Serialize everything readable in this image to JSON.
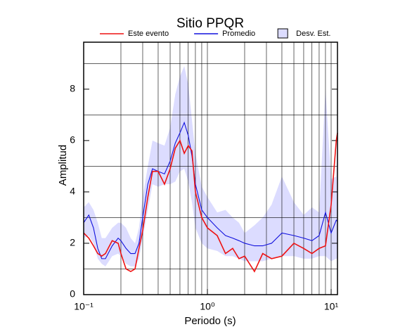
{
  "chart_data": {
    "type": "line",
    "title": "Sitio PPQR",
    "xlabel": "Periodo (s)",
    "ylabel": "Amplitud",
    "x_log": true,
    "xlim": [
      0.1,
      11.25
    ],
    "ylim": [
      0,
      9.83
    ],
    "xticks": [
      {
        "value": 0.1,
        "label": "10⁻¹"
      },
      {
        "value": 1,
        "label": "10⁰"
      },
      {
        "value": 10,
        "label": "10¹"
      }
    ],
    "xminor": [
      0.2,
      0.3,
      0.4,
      0.5,
      0.6,
      0.7,
      0.8,
      0.9,
      2,
      3,
      4,
      5,
      6,
      7,
      8,
      9
    ],
    "yticks": [
      0,
      2,
      4,
      6,
      8
    ],
    "yminor": [
      1,
      3,
      5,
      7,
      9
    ],
    "grid": true,
    "x": [
      0.1,
      0.11,
      0.12,
      0.13,
      0.14,
      0.15,
      0.17,
      0.19,
      0.2,
      0.22,
      0.24,
      0.26,
      0.28,
      0.3,
      0.33,
      0.36,
      0.4,
      0.45,
      0.5,
      0.55,
      0.6,
      0.65,
      0.7,
      0.75,
      0.8,
      0.9,
      1.0,
      1.2,
      1.4,
      1.6,
      1.8,
      2.0,
      2.4,
      2.8,
      3.3,
      4,
      5,
      6,
      7,
      8,
      9,
      10,
      11,
      11.25
    ],
    "band": {
      "name": "Desv. Est.",
      "color": "#dcdcff",
      "lower": [
        2.2,
        2.3,
        2.0,
        1.4,
        1.2,
        1.1,
        1.5,
        1.6,
        1.5,
        1.2,
        1.1,
        1.1,
        1.4,
        2.2,
        3.3,
        4.3,
        4.2,
        4.3,
        4.3,
        4.4,
        4.8,
        4.9,
        4.4,
        3.6,
        2.6,
        2.0,
        1.8,
        1.7,
        1.5,
        1.5,
        1.4,
        1.3,
        1.3,
        1.3,
        1.4,
        1.5,
        1.5,
        1.4,
        1.4,
        1.5,
        1.5,
        1.3,
        1.4,
        1.4
      ],
      "upper": [
        3.4,
        3.6,
        3.3,
        2.8,
        2.2,
        2.2,
        2.6,
        2.8,
        2.8,
        2.6,
        2.2,
        2.0,
        2.6,
        3.8,
        5.0,
        6.0,
        5.9,
        5.8,
        6.5,
        7.8,
        8.5,
        8.9,
        8.2,
        6.8,
        5.5,
        4.2,
        3.8,
        3.2,
        3.3,
        3.0,
        2.8,
        2.4,
        2.7,
        3.0,
        3.5,
        4.6,
        3.6,
        3.1,
        3.4,
        3.2,
        8.0,
        4.5,
        4.6,
        6.6
      ]
    },
    "series": [
      {
        "name": "Este evento",
        "color": "#ee1111",
        "values": [
          2.4,
          2.2,
          1.9,
          1.6,
          1.5,
          1.6,
          2.1,
          2.0,
          1.6,
          1.0,
          0.9,
          1.0,
          1.8,
          2.5,
          3.8,
          4.8,
          4.8,
          4.3,
          4.9,
          5.7,
          6.0,
          5.5,
          5.8,
          5.6,
          4.0,
          3.0,
          2.6,
          2.3,
          1.6,
          1.8,
          1.4,
          1.5,
          0.9,
          1.6,
          1.4,
          1.5,
          2.0,
          1.8,
          1.6,
          1.8,
          1.9,
          3.5,
          6.0,
          6.3
        ]
      },
      {
        "name": "Promedio",
        "color": "#1111dd",
        "values": [
          2.8,
          3.1,
          2.6,
          1.8,
          1.4,
          1.4,
          1.9,
          2.2,
          2.1,
          1.8,
          1.6,
          1.6,
          2.0,
          3.0,
          4.3,
          4.9,
          4.8,
          4.7,
          5.2,
          5.9,
          6.3,
          6.7,
          6.2,
          5.4,
          4.3,
          3.3,
          3.0,
          2.6,
          2.3,
          2.2,
          2.1,
          2.0,
          1.9,
          1.9,
          2.0,
          2.4,
          2.3,
          2.2,
          2.1,
          2.3,
          3.2,
          2.4,
          2.9,
          2.85
        ]
      }
    ]
  }
}
